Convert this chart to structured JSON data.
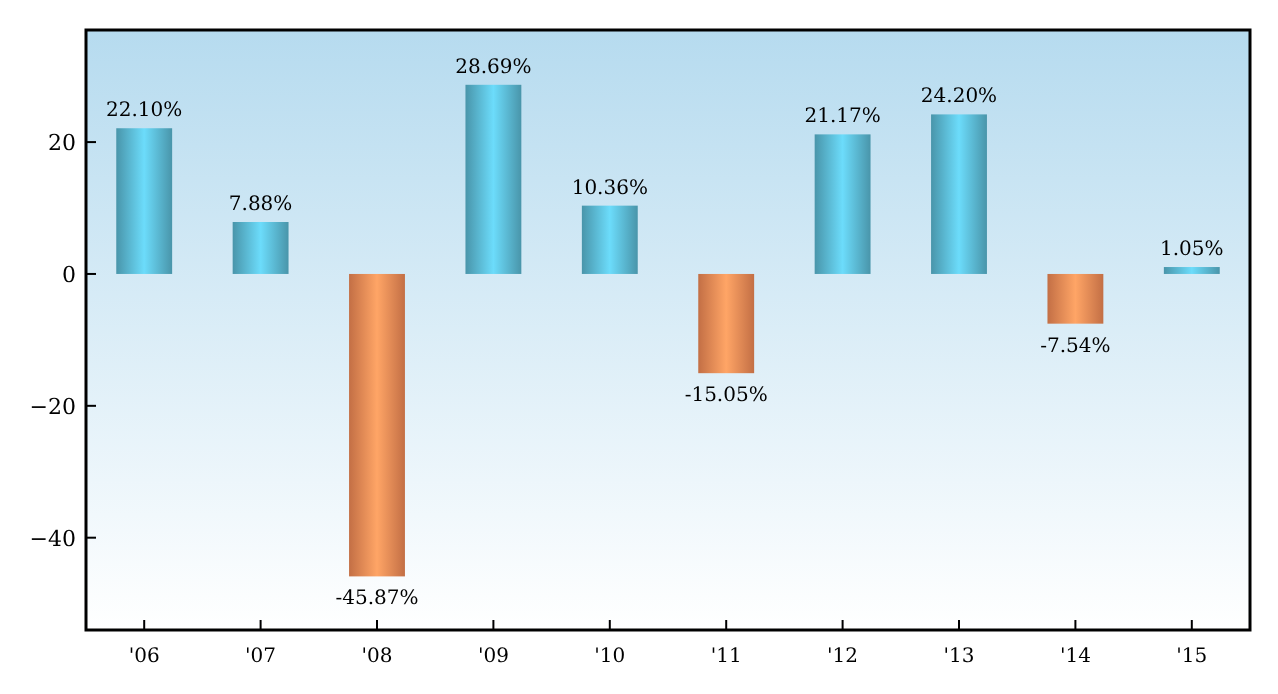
{
  "chart_data": {
    "type": "bar",
    "categories": [
      "'06",
      "'07",
      "'08",
      "'09",
      "'10",
      "'11",
      "'12",
      "'13",
      "'14",
      "'15"
    ],
    "values": [
      22.1,
      7.88,
      -45.87,
      28.69,
      10.36,
      -15.05,
      21.17,
      24.2,
      -7.54,
      1.05
    ],
    "value_labels": [
      "22.10%",
      "7.88%",
      "-45.87%",
      "28.69%",
      "10.36%",
      "-15.05%",
      "21.17%",
      "24.20%",
      "-7.54%",
      "1.05%"
    ],
    "colors": [
      "#5ab8d2",
      "#5ab8d2",
      "#f28a55",
      "#5ab8d2",
      "#5ab8d2",
      "#f28a55",
      "#5ab8d2",
      "#5ab8d2",
      "#f28a55",
      "#5ab8d2"
    ],
    "ylim": [
      -54,
      37
    ],
    "yticks": [
      {
        "value": -40,
        "label": "−40"
      },
      {
        "value": -20,
        "label": "−20"
      },
      0,
      20
    ],
    "grid": false
  }
}
